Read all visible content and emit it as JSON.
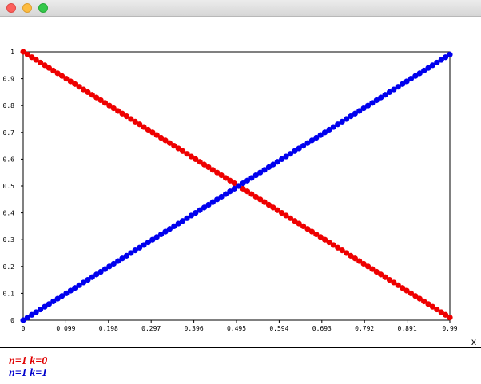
{
  "window": {
    "buttons": [
      "close",
      "minimize",
      "zoom"
    ]
  },
  "chart_data": {
    "type": "scatter",
    "title": "",
    "xlabel": "x",
    "ylabel": "",
    "xlim": [
      0,
      0.99
    ],
    "ylim": [
      0,
      1
    ],
    "x_ticks": [
      "0",
      "0.099",
      "0.198",
      "0.297",
      "0.396",
      "0.495",
      "0.594",
      "0.693",
      "0.792",
      "0.891",
      "0.99"
    ],
    "y_ticks": [
      "0",
      "0.1",
      "0.2",
      "0.3",
      "0.4",
      "0.5",
      "0.6",
      "0.7",
      "0.8",
      "0.9",
      "1"
    ],
    "x_tick_values": [
      0,
      0.099,
      0.198,
      0.297,
      0.396,
      0.495,
      0.594,
      0.693,
      0.792,
      0.891,
      0.99
    ],
    "y_tick_values": [
      0,
      0.1,
      0.2,
      0.3,
      0.4,
      0.5,
      0.6,
      0.7,
      0.8,
      0.9,
      1
    ],
    "grid": false,
    "legend_position": "bottom",
    "series": [
      {
        "name": "n=1 k=0",
        "color": "#ee0000",
        "x_start": 0,
        "x_end": 0.99,
        "x_step": 0.01,
        "formula": "y = 1 - x"
      },
      {
        "name": "n=1 k=1",
        "color": "#0000ee",
        "x_start": 0,
        "x_end": 0.99,
        "x_step": 0.01,
        "formula": "y = x"
      }
    ]
  }
}
